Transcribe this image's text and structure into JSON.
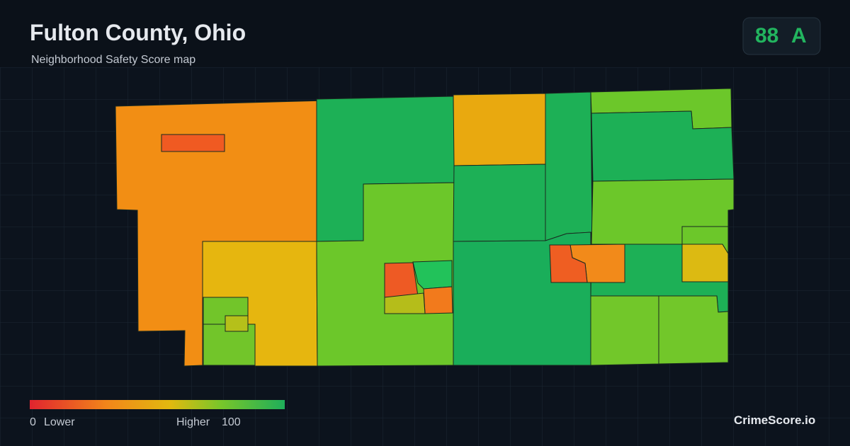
{
  "header": {
    "title": "Fulton County, Ohio",
    "subtitle": "Neighborhood Safety Score map"
  },
  "badge": {
    "score": 88,
    "grade": "A"
  },
  "legend": {
    "min": 0,
    "min_label": "Lower",
    "max_label": "Higher",
    "max": 100
  },
  "brand": "CrimeScore.io"
}
